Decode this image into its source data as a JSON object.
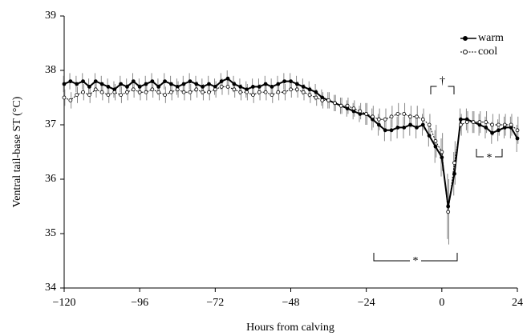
{
  "chart_data": {
    "type": "line",
    "xlabel": "Hours from calving",
    "ylabel": "Ventral tail-base ST  (°C)",
    "x": [
      -120,
      -118,
      -116,
      -114,
      -112,
      -110,
      -108,
      -106,
      -104,
      -102,
      -100,
      -98,
      -96,
      -94,
      -92,
      -90,
      -88,
      -86,
      -84,
      -82,
      -80,
      -78,
      -76,
      -74,
      -72,
      -70,
      -68,
      -66,
      -64,
      -62,
      -60,
      -58,
      -56,
      -54,
      -52,
      -50,
      -48,
      -46,
      -44,
      -42,
      -40,
      -38,
      -36,
      -34,
      -32,
      -30,
      -28,
      -26,
      -24,
      -22,
      -20,
      -18,
      -16,
      -14,
      -12,
      -10,
      -8,
      -6,
      -4,
      -2,
      0,
      2,
      4,
      6,
      8,
      10,
      12,
      14,
      16,
      18,
      20,
      22,
      24
    ],
    "series": [
      {
        "name": "warm",
        "color": "#000000",
        "marker": "filled",
        "values": [
          37.75,
          37.8,
          37.75,
          37.8,
          37.7,
          37.8,
          37.75,
          37.7,
          37.65,
          37.75,
          37.7,
          37.8,
          37.7,
          37.75,
          37.8,
          37.7,
          37.8,
          37.75,
          37.7,
          37.75,
          37.8,
          37.75,
          37.7,
          37.75,
          37.7,
          37.8,
          37.85,
          37.75,
          37.7,
          37.65,
          37.7,
          37.7,
          37.75,
          37.7,
          37.75,
          37.8,
          37.8,
          37.75,
          37.7,
          37.65,
          37.6,
          37.5,
          37.45,
          37.4,
          37.35,
          37.3,
          37.25,
          37.2,
          37.2,
          37.1,
          37.0,
          36.9,
          36.9,
          36.95,
          36.95,
          37.0,
          36.95,
          37.0,
          36.8,
          36.6,
          36.4,
          35.5,
          36.1,
          37.1,
          37.1,
          37.05,
          37.0,
          36.95,
          36.85,
          36.9,
          36.95,
          36.95,
          36.75
        ],
        "errors": [
          0.15,
          0.15,
          0.15,
          0.15,
          0.15,
          0.15,
          0.15,
          0.15,
          0.15,
          0.15,
          0.15,
          0.15,
          0.15,
          0.15,
          0.15,
          0.15,
          0.15,
          0.15,
          0.15,
          0.15,
          0.15,
          0.15,
          0.15,
          0.15,
          0.15,
          0.15,
          0.15,
          0.15,
          0.15,
          0.15,
          0.15,
          0.15,
          0.15,
          0.15,
          0.15,
          0.15,
          0.15,
          0.15,
          0.15,
          0.15,
          0.15,
          0.15,
          0.15,
          0.15,
          0.15,
          0.15,
          0.15,
          0.15,
          0.2,
          0.2,
          0.2,
          0.2,
          0.2,
          0.2,
          0.2,
          0.2,
          0.2,
          0.2,
          0.2,
          0.3,
          0.35,
          0.6,
          0.4,
          0.2,
          0.2,
          0.2,
          0.2,
          0.2,
          0.2,
          0.2,
          0.2,
          0.2,
          0.25
        ]
      },
      {
        "name": "cool",
        "color": "#000000",
        "marker": "open",
        "values": [
          37.5,
          37.45,
          37.55,
          37.6,
          37.55,
          37.65,
          37.6,
          37.55,
          37.6,
          37.55,
          37.6,
          37.65,
          37.6,
          37.6,
          37.65,
          37.6,
          37.55,
          37.6,
          37.65,
          37.6,
          37.6,
          37.65,
          37.6,
          37.6,
          37.65,
          37.7,
          37.7,
          37.65,
          37.6,
          37.6,
          37.55,
          37.6,
          37.6,
          37.55,
          37.6,
          37.6,
          37.65,
          37.65,
          37.6,
          37.55,
          37.5,
          37.45,
          37.45,
          37.4,
          37.35,
          37.35,
          37.3,
          37.25,
          37.2,
          37.15,
          37.1,
          37.1,
          37.15,
          37.2,
          37.2,
          37.15,
          37.15,
          37.1,
          37.0,
          36.7,
          36.5,
          35.4,
          36.3,
          37.0,
          37.05,
          37.05,
          37.05,
          37.05,
          37.0,
          37.0,
          37.0,
          37.0,
          36.9
        ],
        "errors": [
          0.15,
          0.15,
          0.15,
          0.15,
          0.15,
          0.15,
          0.15,
          0.15,
          0.15,
          0.15,
          0.15,
          0.15,
          0.15,
          0.15,
          0.15,
          0.15,
          0.15,
          0.15,
          0.15,
          0.15,
          0.15,
          0.15,
          0.15,
          0.15,
          0.15,
          0.15,
          0.15,
          0.15,
          0.15,
          0.15,
          0.15,
          0.15,
          0.15,
          0.15,
          0.15,
          0.15,
          0.15,
          0.15,
          0.15,
          0.15,
          0.15,
          0.15,
          0.15,
          0.15,
          0.15,
          0.15,
          0.15,
          0.15,
          0.2,
          0.2,
          0.2,
          0.2,
          0.2,
          0.2,
          0.2,
          0.2,
          0.2,
          0.2,
          0.2,
          0.3,
          0.35,
          0.6,
          0.4,
          0.2,
          0.2,
          0.2,
          0.2,
          0.2,
          0.2,
          0.2,
          0.2,
          0.2,
          0.25
        ]
      }
    ],
    "xlim": [
      -120,
      24
    ],
    "xticks": [
      {
        "value": -120,
        "label": "−120"
      },
      {
        "value": -96,
        "label": "−96"
      },
      {
        "value": -72,
        "label": "−72"
      },
      {
        "value": -48,
        "label": "−48"
      },
      {
        "value": -24,
        "label": "−24"
      },
      0,
      24
    ],
    "ylim": [
      34,
      39
    ],
    "yticks": [
      34,
      35,
      36,
      37,
      38,
      39
    ],
    "legend": "upper right",
    "annotations": [
      "†",
      "*",
      "*"
    ]
  }
}
